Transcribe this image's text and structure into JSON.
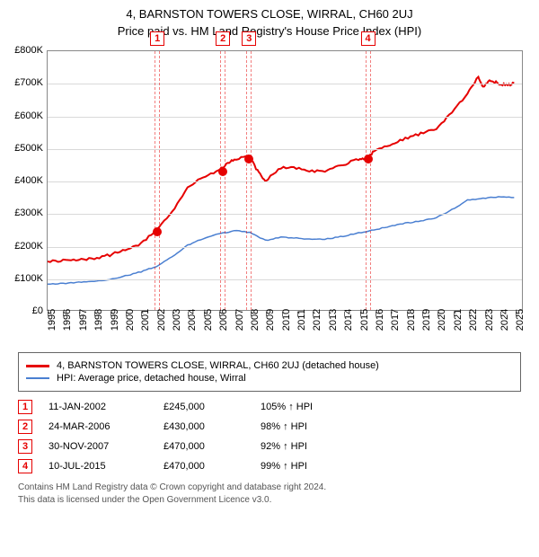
{
  "title": {
    "line1": "4, BARNSTON TOWERS CLOSE, WIRRAL, CH60 2UJ",
    "line2": "Price paid vs. HM Land Registry's House Price Index (HPI)"
  },
  "chart": {
    "type": "line",
    "x_range": [
      1995,
      2025.5
    ],
    "y_range": [
      0,
      800000
    ],
    "grid_color": "#d9d9d9",
    "axis_color": "#888888",
    "background": "#ffffff",
    "y_ticks": [
      {
        "v": 0,
        "label": "£0"
      },
      {
        "v": 100000,
        "label": "£100K"
      },
      {
        "v": 200000,
        "label": "£200K"
      },
      {
        "v": 300000,
        "label": "£300K"
      },
      {
        "v": 400000,
        "label": "£400K"
      },
      {
        "v": 500000,
        "label": "£500K"
      },
      {
        "v": 600000,
        "label": "£600K"
      },
      {
        "v": 700000,
        "label": "£700K"
      },
      {
        "v": 800000,
        "label": "£800K"
      }
    ],
    "x_ticks": [
      1995,
      1996,
      1997,
      1998,
      1999,
      2000,
      2001,
      2002,
      2003,
      2004,
      2005,
      2006,
      2007,
      2008,
      2009,
      2010,
      2011,
      2012,
      2013,
      2014,
      2015,
      2016,
      2017,
      2018,
      2019,
      2020,
      2021,
      2022,
      2023,
      2024,
      2025
    ],
    "series": [
      {
        "name": "property",
        "label": "4, BARNSTON TOWERS CLOSE, WIRRAL, CH60 2UJ (detached house)",
        "color": "#e60000",
        "width": 2,
        "data": [
          [
            1995,
            150000
          ],
          [
            1996,
            152000
          ],
          [
            1997,
            155000
          ],
          [
            1998,
            160000
          ],
          [
            1999,
            170000
          ],
          [
            2000,
            185000
          ],
          [
            2001,
            205000
          ],
          [
            2002,
            245000
          ],
          [
            2003,
            300000
          ],
          [
            2004,
            380000
          ],
          [
            2005,
            410000
          ],
          [
            2006,
            430000
          ],
          [
            2006.5,
            450000
          ],
          [
            2007,
            465000
          ],
          [
            2007.9,
            480000
          ],
          [
            2008.5,
            430000
          ],
          [
            2009,
            400000
          ],
          [
            2010,
            440000
          ],
          [
            2011,
            440000
          ],
          [
            2012,
            430000
          ],
          [
            2013,
            430000
          ],
          [
            2014,
            450000
          ],
          [
            2015,
            465000
          ],
          [
            2015.5,
            470000
          ],
          [
            2016,
            490000
          ],
          [
            2017,
            510000
          ],
          [
            2018,
            530000
          ],
          [
            2019,
            545000
          ],
          [
            2020,
            560000
          ],
          [
            2021,
            610000
          ],
          [
            2022,
            670000
          ],
          [
            2022.7,
            720000
          ],
          [
            2023,
            690000
          ],
          [
            2023.5,
            710000
          ],
          [
            2024,
            700000
          ],
          [
            2024.5,
            695000
          ],
          [
            2025,
            700000
          ]
        ]
      },
      {
        "name": "hpi",
        "label": "HPI: Average price, detached house, Wirral",
        "color": "#4a7fd1",
        "width": 1.5,
        "data": [
          [
            1995,
            80000
          ],
          [
            1996,
            82000
          ],
          [
            1997,
            85000
          ],
          [
            1998,
            88000
          ],
          [
            1999,
            95000
          ],
          [
            2000,
            105000
          ],
          [
            2001,
            118000
          ],
          [
            2002,
            135000
          ],
          [
            2003,
            165000
          ],
          [
            2004,
            200000
          ],
          [
            2005,
            220000
          ],
          [
            2006,
            235000
          ],
          [
            2007,
            245000
          ],
          [
            2008,
            240000
          ],
          [
            2009,
            215000
          ],
          [
            2010,
            225000
          ],
          [
            2011,
            222000
          ],
          [
            2012,
            218000
          ],
          [
            2013,
            220000
          ],
          [
            2014,
            228000
          ],
          [
            2015,
            238000
          ],
          [
            2016,
            248000
          ],
          [
            2017,
            258000
          ],
          [
            2018,
            268000
          ],
          [
            2019,
            275000
          ],
          [
            2020,
            285000
          ],
          [
            2021,
            310000
          ],
          [
            2022,
            340000
          ],
          [
            2023,
            345000
          ],
          [
            2024,
            350000
          ],
          [
            2025,
            348000
          ]
        ]
      }
    ],
    "markers": [
      {
        "n": 1,
        "x": 2002.03,
        "price": 245000,
        "badge_x": 2002.03
      },
      {
        "n": 2,
        "x": 2006.23,
        "price": 430000,
        "badge_x": 2006.23
      },
      {
        "n": 3,
        "x": 2007.91,
        "price": 470000,
        "badge_x": 2007.91
      },
      {
        "n": 4,
        "x": 2015.52,
        "price": 470000,
        "badge_x": 2015.52
      }
    ],
    "marker_band_color": "#e60000",
    "marker_dot_color": "#e60000"
  },
  "legend": {
    "items": [
      {
        "color": "#e60000",
        "label": "4, BARNSTON TOWERS CLOSE, WIRRAL, CH60 2UJ (detached house)"
      },
      {
        "color": "#4a7fd1",
        "label": "HPI: Average price, detached house, Wirral"
      }
    ]
  },
  "sales": [
    {
      "n": "1",
      "date": "11-JAN-2002",
      "price": "£245,000",
      "hpi": "105% ↑ HPI"
    },
    {
      "n": "2",
      "date": "24-MAR-2006",
      "price": "£430,000",
      "hpi": "98% ↑ HPI"
    },
    {
      "n": "3",
      "date": "30-NOV-2007",
      "price": "£470,000",
      "hpi": "92% ↑ HPI"
    },
    {
      "n": "4",
      "date": "10-JUL-2015",
      "price": "£470,000",
      "hpi": "99% ↑ HPI"
    }
  ],
  "sales_border_color": "#e60000",
  "footer": {
    "line1": "Contains HM Land Registry data © Crown copyright and database right 2024.",
    "line2": "This data is licensed under the Open Government Licence v3.0."
  }
}
